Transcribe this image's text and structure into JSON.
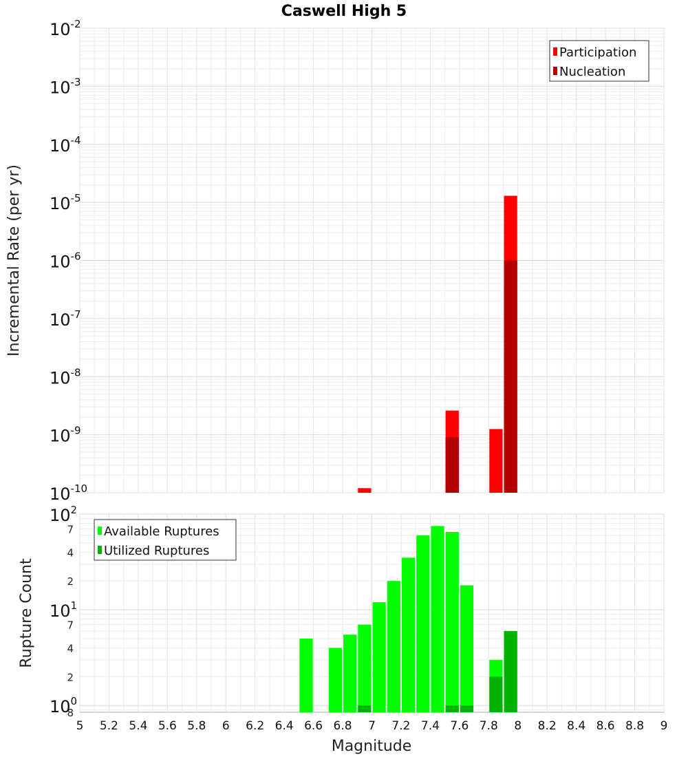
{
  "chart_data": [
    {
      "type": "bar",
      "title": "Caswell High 5",
      "xlabel": "Magnitude",
      "ylabel": "Incremental Rate (per yr)",
      "yscale": "log",
      "ylim": [
        1e-10,
        0.01
      ],
      "xlim": [
        5,
        9
      ],
      "bin_width": 0.1,
      "grid": true,
      "legend_position": "top-right",
      "y_tick_labels": [
        {
          "value": 0.01,
          "base": "10",
          "exp": "-2"
        },
        {
          "value": 0.001,
          "base": "10",
          "exp": "-3"
        },
        {
          "value": 0.0001,
          "base": "10",
          "exp": "-4"
        },
        {
          "value": 1e-05,
          "base": "10",
          "exp": "-5"
        },
        {
          "value": 1e-06,
          "base": "10",
          "exp": "-6"
        },
        {
          "value": 1e-07,
          "base": "10",
          "exp": "-7"
        },
        {
          "value": 1e-08,
          "base": "10",
          "exp": "-8"
        },
        {
          "value": 1e-09,
          "base": "10",
          "exp": "-9"
        },
        {
          "value": 1e-10,
          "base": "10",
          "exp": "-10"
        }
      ],
      "series": [
        {
          "name": "Participation",
          "color": "#ff0000",
          "points": [
            {
              "x": 6.95,
              "y": 1.2e-10
            },
            {
              "x": 7.55,
              "y": 2.6e-09
            },
            {
              "x": 7.85,
              "y": 1.25e-09
            },
            {
              "x": 7.95,
              "y": 1.3e-05
            }
          ]
        },
        {
          "name": "Nucleation",
          "color": "#b30000",
          "points": [
            {
              "x": 7.55,
              "y": 9e-10
            },
            {
              "x": 7.95,
              "y": 1e-06
            }
          ]
        }
      ]
    },
    {
      "type": "bar",
      "xlabel": "Magnitude",
      "ylabel": "Rupture Count",
      "yscale": "log",
      "ylim": [
        0.85,
        100
      ],
      "xlim": [
        5,
        9
      ],
      "bin_width": 0.1,
      "grid": true,
      "legend_position": "top-left",
      "x_tick_labels": [
        "5",
        "5.2",
        "5.4",
        "5.6",
        "5.8",
        "6",
        "6.2",
        "6.4",
        "6.6",
        "6.8",
        "7",
        "7.2",
        "7.4",
        "7.6",
        "7.8",
        "8",
        "8.2",
        "8.4",
        "8.6",
        "8.8",
        "9"
      ],
      "y_tick_labels": [
        {
          "value": 100,
          "base": "10",
          "exp": "2"
        },
        {
          "value": 10,
          "base": "10",
          "exp": "1"
        },
        {
          "value": 1,
          "base": "10",
          "exp": "0"
        }
      ],
      "y_minor_tick_labels": [
        {
          "value": 70,
          "label": "7"
        },
        {
          "value": 40,
          "label": "4"
        },
        {
          "value": 20,
          "label": "2"
        },
        {
          "value": 7,
          "label": "7"
        },
        {
          "value": 4,
          "label": "4"
        },
        {
          "value": 2,
          "label": "2"
        },
        {
          "value": 0.85,
          "label": "8"
        }
      ],
      "series": [
        {
          "name": "Available Ruptures",
          "color": "#00ff00",
          "points": [
            {
              "x": 6.55,
              "y": 5
            },
            {
              "x": 6.75,
              "y": 4
            },
            {
              "x": 6.85,
              "y": 5.5
            },
            {
              "x": 6.95,
              "y": 7
            },
            {
              "x": 7.05,
              "y": 12
            },
            {
              "x": 7.15,
              "y": 20
            },
            {
              "x": 7.25,
              "y": 35
            },
            {
              "x": 7.35,
              "y": 60
            },
            {
              "x": 7.45,
              "y": 75
            },
            {
              "x": 7.55,
              "y": 65
            },
            {
              "x": 7.65,
              "y": 18
            },
            {
              "x": 7.85,
              "y": 3
            },
            {
              "x": 7.95,
              "y": 6
            }
          ]
        },
        {
          "name": "Utilized Ruptures",
          "color": "#00b300",
          "points": [
            {
              "x": 6.95,
              "y": 1
            },
            {
              "x": 7.55,
              "y": 1
            },
            {
              "x": 7.65,
              "y": 1
            },
            {
              "x": 7.85,
              "y": 2
            },
            {
              "x": 7.95,
              "y": 6
            }
          ]
        }
      ]
    }
  ]
}
